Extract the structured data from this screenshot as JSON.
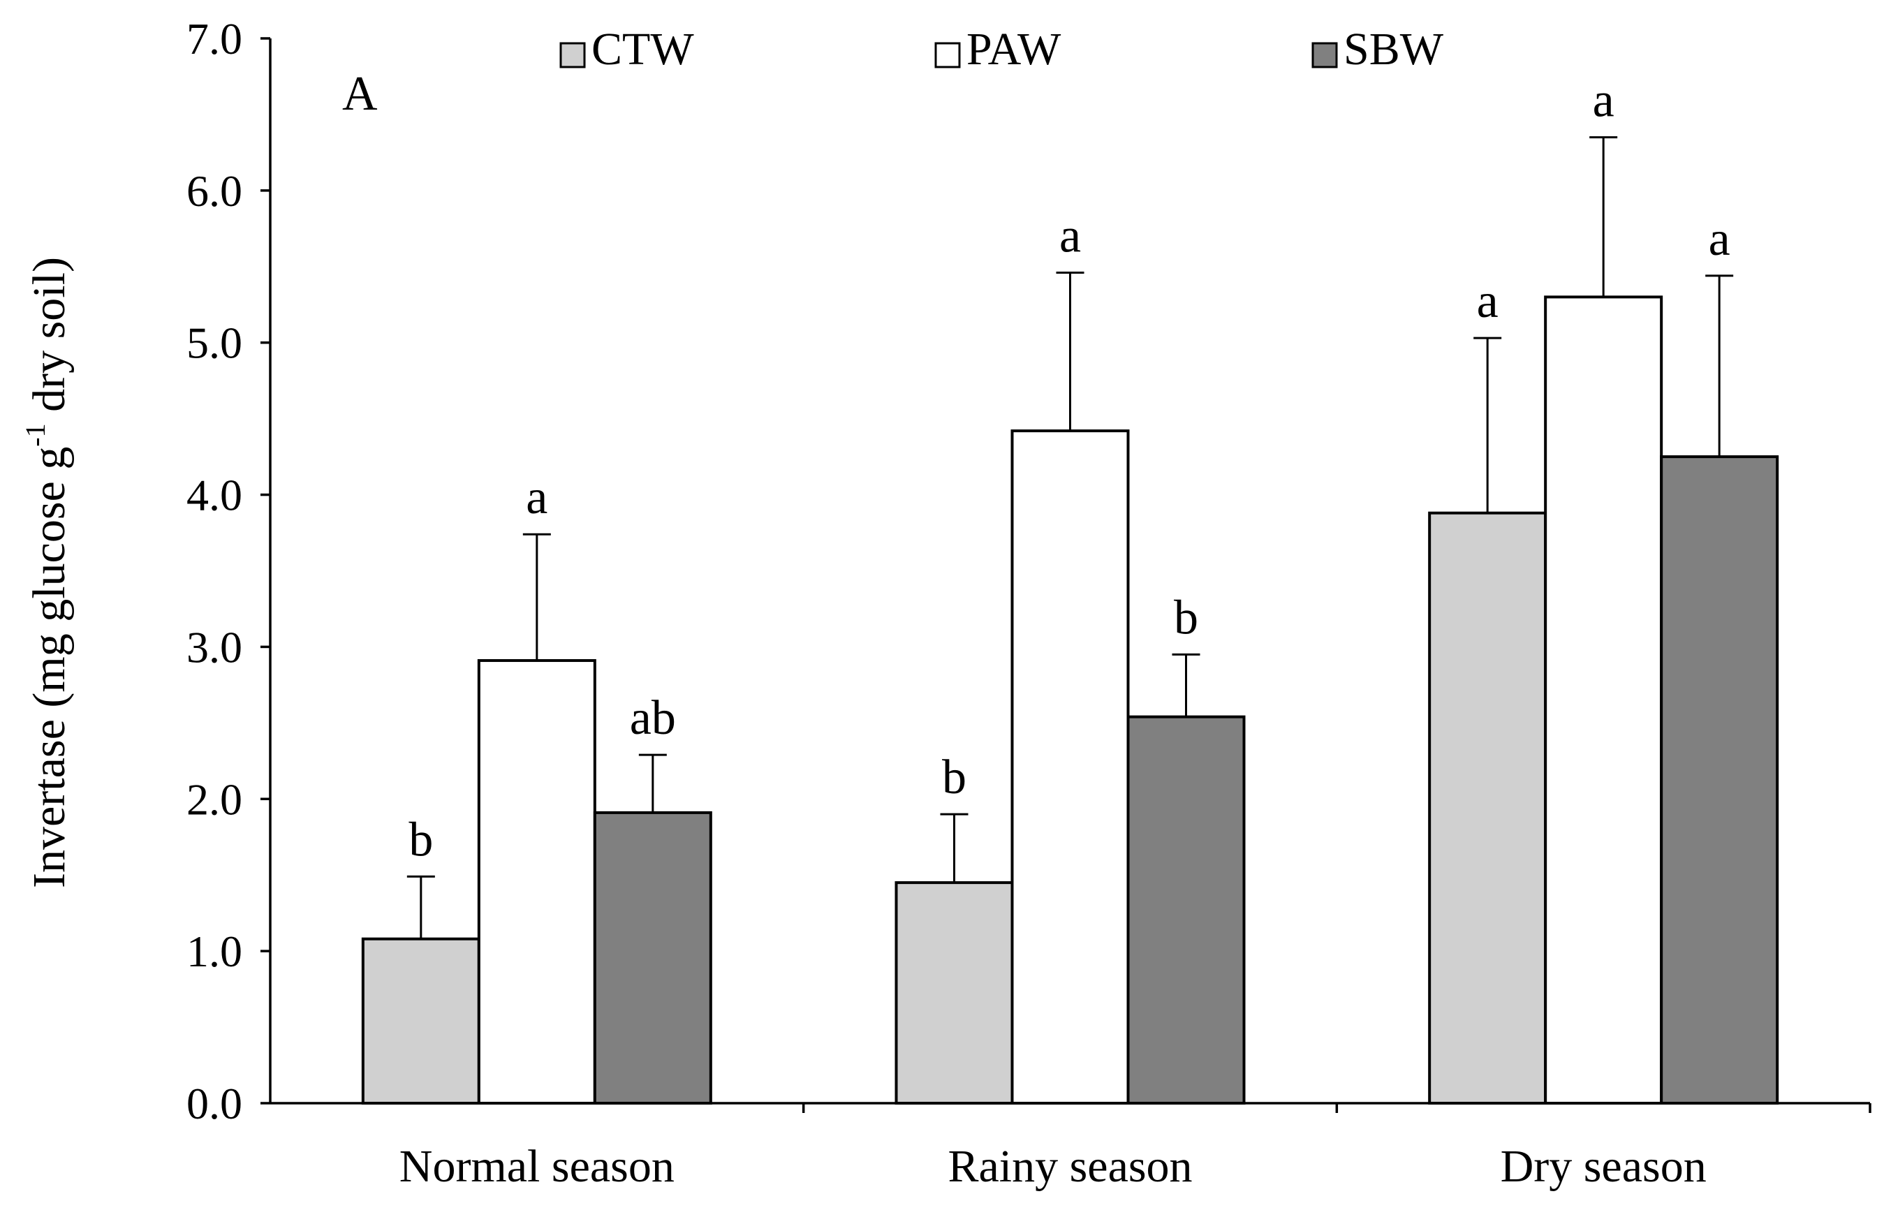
{
  "chart_data": {
    "type": "bar",
    "panel_label": "A",
    "ylabel": "Invertase (mg glucose g",
    "ylabel_sup": "-1",
    "ylabel_suffix": " dry soil)",
    "ylim": [
      0,
      7
    ],
    "yticks": [
      "0.0",
      "1.0",
      "2.0",
      "3.0",
      "4.0",
      "5.0",
      "6.0",
      "7.0"
    ],
    "categories": [
      "Normal season",
      "Rainy season",
      "Dry season"
    ],
    "series": [
      {
        "name": "CTW",
        "color": "#d0d0d0",
        "values": [
          1.08,
          1.45,
          3.88
        ],
        "errors": [
          0.41,
          0.45,
          1.15
        ],
        "labels": [
          "b",
          "b",
          "a"
        ]
      },
      {
        "name": "PAW",
        "color": "#ffffff",
        "values": [
          2.91,
          4.42,
          5.3
        ],
        "errors": [
          0.83,
          1.04,
          1.05
        ],
        "labels": [
          "a",
          "a",
          "a"
        ]
      },
      {
        "name": "SBW",
        "color": "#808080",
        "values": [
          1.91,
          2.54,
          4.25
        ],
        "errors": [
          0.38,
          0.41,
          1.19
        ],
        "labels": [
          "ab",
          "b",
          "a"
        ]
      }
    ],
    "legend_position": "top"
  }
}
